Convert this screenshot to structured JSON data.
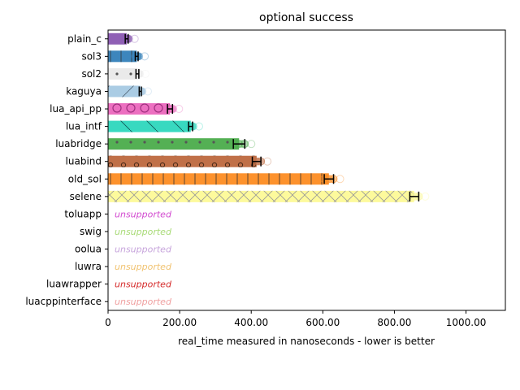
{
  "chart_data": {
    "type": "bar",
    "orientation": "horizontal",
    "title": "optional success",
    "xlabel": "real_time measured in nanoseconds - lower is better",
    "ylabel": "",
    "xlim": [
      0,
      1110
    ],
    "xticks": [
      0,
      200,
      400,
      600,
      800,
      1000
    ],
    "xtick_labels": [
      "0",
      "200.00",
      "400.00",
      "600.00",
      "800.00",
      "1000.00"
    ],
    "grid": false,
    "categories": [
      "plain_c",
      "sol3",
      "sol2",
      "kaguya",
      "lua_api_pp",
      "lua_intf",
      "luabridge",
      "luabind",
      "old_sol",
      "selene",
      "toluapp",
      "swig",
      "oolua",
      "luwra",
      "luawrapper",
      "luacppinterface"
    ],
    "bars": [
      {
        "name": "plain_c",
        "value": 52,
        "err_low": 48,
        "err_high": 56,
        "color": "#8f5fb5",
        "hatch": "none"
      },
      {
        "name": "sol3",
        "value": 80,
        "err_low": 76,
        "err_high": 84,
        "color": "#3d86bd",
        "hatch": "vertical"
      },
      {
        "name": "sol2",
        "value": 82,
        "err_low": 78,
        "err_high": 86,
        "color": "#eaeaea",
        "hatch": "dots"
      },
      {
        "name": "kaguya",
        "value": 90,
        "err_low": 87,
        "err_high": 93,
        "color": "#aacce4",
        "hatch": "diagonal"
      },
      {
        "name": "lua_api_pp",
        "value": 173,
        "err_low": 166,
        "err_high": 180,
        "color": "#ec6fc0",
        "hatch": "circles"
      },
      {
        "name": "lua_intf",
        "value": 231,
        "err_low": 225,
        "err_high": 236,
        "color": "#38d9c0",
        "hatch": "backslash"
      },
      {
        "name": "luabridge",
        "value": 366,
        "err_low": 350,
        "err_high": 382,
        "color": "#54b054",
        "hatch": "dots"
      },
      {
        "name": "luabind",
        "value": 415,
        "err_low": 403,
        "err_high": 427,
        "color": "#c07048",
        "hatch": "rings"
      },
      {
        "name": "old_sol",
        "value": 617,
        "err_low": 604,
        "err_high": 630,
        "color": "#fd922d",
        "hatch": "vertical"
      },
      {
        "name": "selene",
        "value": 855,
        "err_low": 843,
        "err_high": 868,
        "color": "#fdfa9c",
        "hatch": "cross"
      }
    ],
    "unsupported_label": "unsupported",
    "unsupported": [
      {
        "name": "toluapp",
        "color": "#d24bd0"
      },
      {
        "name": "swig",
        "color": "#a9db78"
      },
      {
        "name": "oolua",
        "color": "#c7a5dc"
      },
      {
        "name": "luwra",
        "color": "#f1c371"
      },
      {
        "name": "luawrapper",
        "color": "#d52a2a"
      },
      {
        "name": "luacppinterface",
        "color": "#f0a0a0"
      }
    ]
  }
}
